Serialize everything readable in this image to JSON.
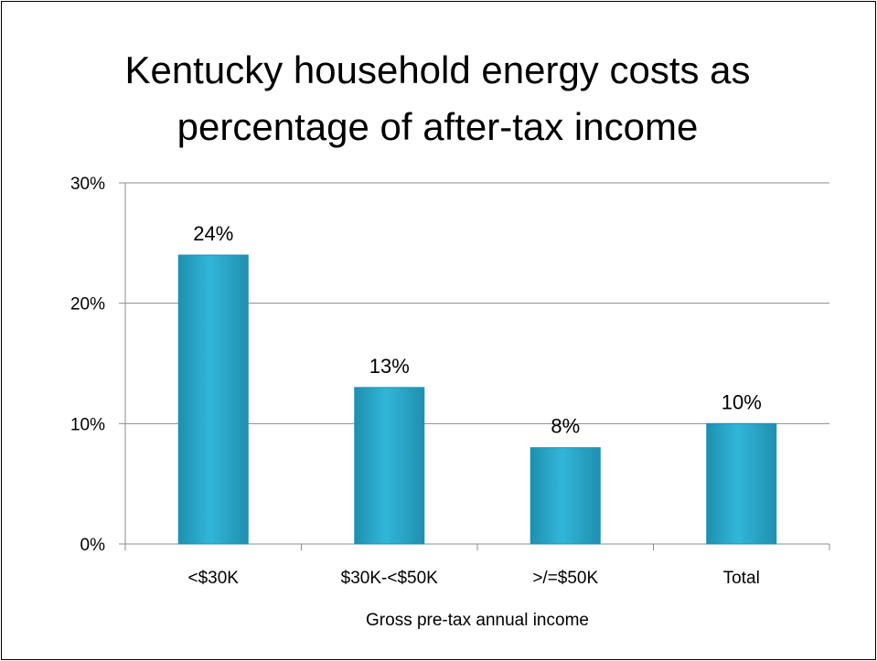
{
  "chart_data": {
    "type": "bar",
    "title_lines": [
      "Kentucky household energy costs as",
      "percentage of after-tax income"
    ],
    "categories": [
      "<$30K",
      "$30K-<$50K",
      ">/=$50K",
      "Total"
    ],
    "values": [
      24,
      13,
      8,
      10
    ],
    "data_labels": [
      "24%",
      "13%",
      "8%",
      "10%"
    ],
    "xlabel": "Gross pre-tax annual income",
    "ylabel": "",
    "ylim": [
      0,
      30
    ],
    "yticks": [
      0,
      10,
      20,
      30
    ],
    "ytick_labels": [
      "0%",
      "10%",
      "20%",
      "30%"
    ],
    "grid": true,
    "legend": "none",
    "bar_color": "#31b6d9",
    "bar_color_dark": "#1f8fb0"
  }
}
